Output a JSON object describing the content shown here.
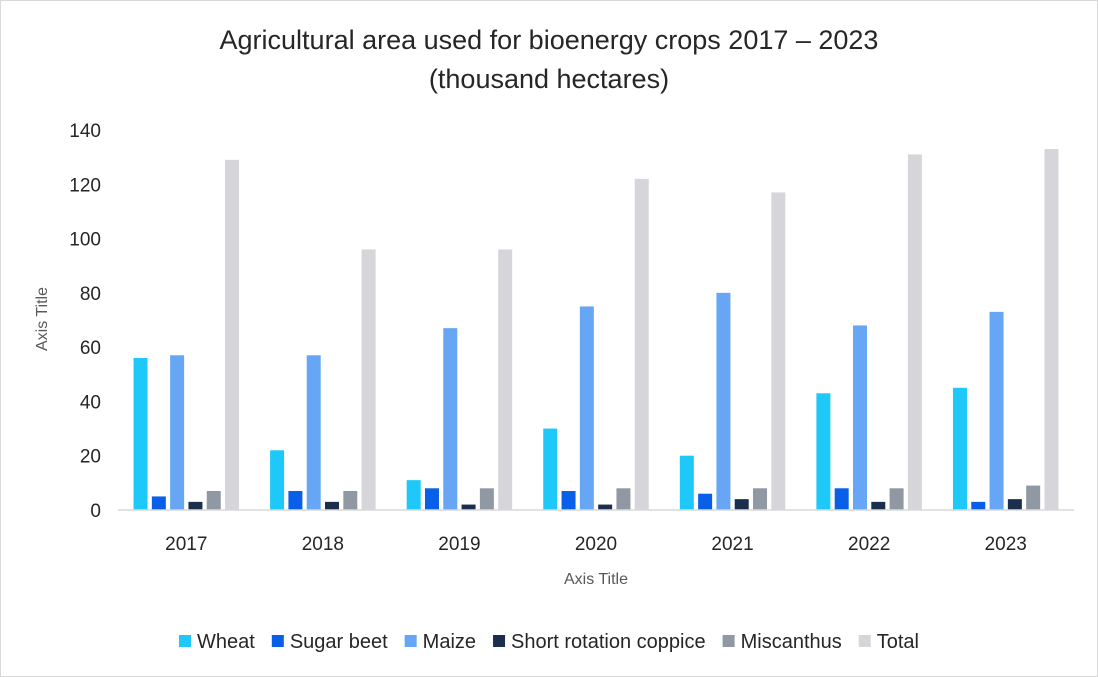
{
  "chart_data": {
    "type": "bar",
    "title_line1": "Agricultural area used for bioenergy crops 2017 – 2023",
    "title_line2": "(thousand hectares)",
    "xlabel": "Axis Title",
    "ylabel": "Axis Title",
    "ylim": [
      0,
      140
    ],
    "yticks": [
      0,
      20,
      40,
      60,
      80,
      100,
      120,
      140
    ],
    "grid": false,
    "legend_position": "bottom",
    "categories": [
      "2017",
      "2018",
      "2019",
      "2020",
      "2021",
      "2022",
      "2023"
    ],
    "series": [
      {
        "name": "Wheat",
        "color": "#1ec8f8",
        "values": [
          56,
          22,
          11,
          30,
          20,
          43,
          45
        ]
      },
      {
        "name": "Sugar beet",
        "color": "#0a5fe8",
        "values": [
          5,
          7,
          8,
          7,
          6,
          8,
          3
        ]
      },
      {
        "name": "Maize",
        "color": "#66a6f5",
        "values": [
          57,
          57,
          67,
          75,
          80,
          68,
          73
        ]
      },
      {
        "name": "Short rotation coppice",
        "color": "#1b2e4d",
        "values": [
          3,
          3,
          2,
          2,
          4,
          3,
          4
        ]
      },
      {
        "name": "Miscanthus",
        "color": "#9099a3",
        "values": [
          7,
          7,
          8,
          8,
          8,
          8,
          9
        ]
      },
      {
        "name": "Total",
        "color": "#d6d6da",
        "values": [
          129,
          96,
          96,
          122,
          117,
          131,
          133
        ]
      }
    ]
  }
}
